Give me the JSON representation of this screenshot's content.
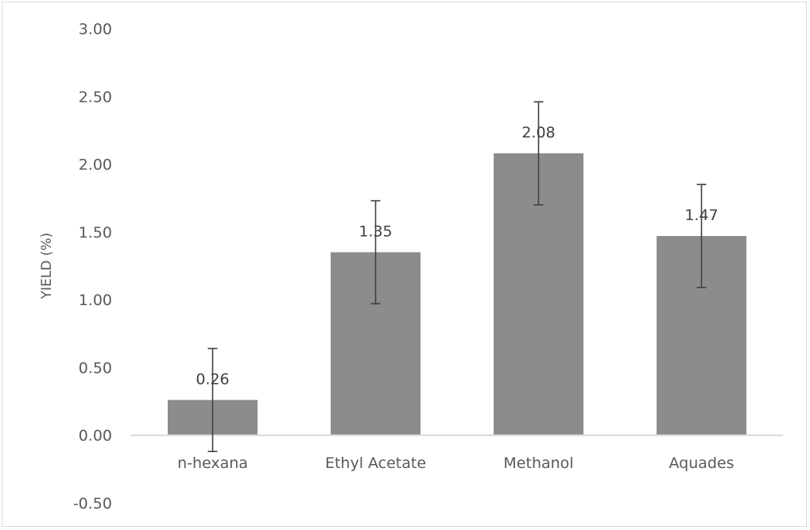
{
  "chart_data": {
    "type": "bar",
    "title": "",
    "xlabel": "",
    "ylabel": "YIELD (%)",
    "categories": [
      "n-hexana",
      "Ethyl Acetate",
      "Methanol",
      "Aquades"
    ],
    "values": [
      0.26,
      1.35,
      2.08,
      1.47
    ],
    "data_labels": [
      "0.26",
      "1.35",
      "2.08",
      "1.47"
    ],
    "error_bars": [
      0.38,
      0.38,
      0.38,
      0.38
    ],
    "ylim": [
      -0.5,
      3.0
    ],
    "yticks": [
      "3.00",
      "2.50",
      "2.00",
      "1.50",
      "1.00",
      "0.50",
      "0.00",
      "-0.50"
    ],
    "ytick_values": [
      3.0,
      2.5,
      2.0,
      1.5,
      1.0,
      0.5,
      0.0,
      -0.5
    ],
    "grid": false,
    "legend": "none",
    "colors": {
      "bar": "#8c8c8c",
      "error_bar": "#404040",
      "axis": "#d9d9d9"
    }
  }
}
